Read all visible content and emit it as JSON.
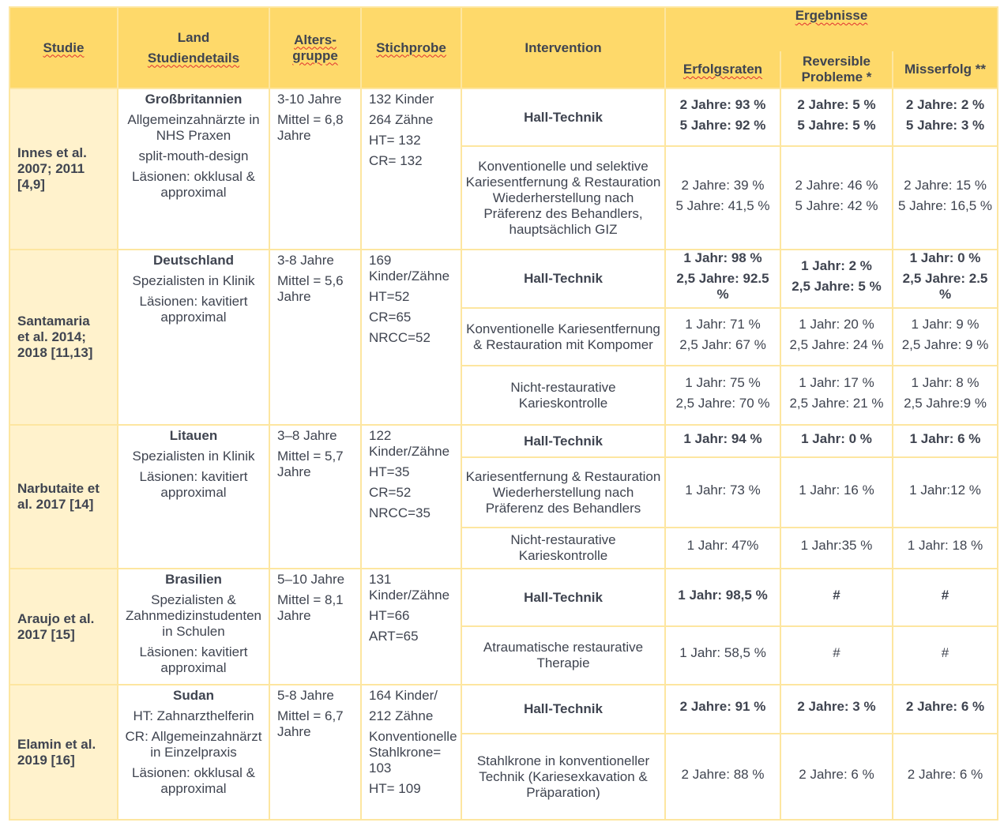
{
  "header": {
    "study": "Studie",
    "country": [
      "Land",
      "Studiendetails"
    ],
    "age": [
      "Alters-",
      "gruppe"
    ],
    "sample": "Stichprobe",
    "intervention": "Intervention",
    "results": "Ergebnisse",
    "success": "Erfolgsraten",
    "reversible": [
      "Reversible",
      "Probleme *"
    ],
    "failure": "Misserfolg **"
  },
  "colors": {
    "header_bg": "#fed96a",
    "study_bg": "#fff2cc",
    "border": "#fde6a0",
    "text": "#3f4450"
  },
  "studies": [
    {
      "study": [
        "Innes et al.",
        "2007; 2011",
        "[4,9]"
      ],
      "country": "Großbritannien",
      "details": [
        "Allgemeinzahnärzte in NHS Praxen",
        "split-mouth-design",
        "Läsionen: okklusal & approximal"
      ],
      "age": [
        "3-10 Jahre",
        "Mittel = 6,8 Jahre"
      ],
      "sample": [
        "132 Kinder",
        "264 Zähne",
        "HT= 132",
        "CR= 132"
      ],
      "interventions": [
        {
          "name": "Hall-Technik",
          "bold": true,
          "success": [
            "2 Jahre: 93 %",
            "5 Jahre: 92 %"
          ],
          "reversible": [
            "2 Jahre: 5 %",
            "5 Jahre: 5 %"
          ],
          "failure": [
            "2 Jahre: 2 %",
            "5 Jahre: 3 %"
          ]
        },
        {
          "name": "Konventionelle und selektive Kariesentfernung & Restauration Wiederherstellung nach Präferenz des Behandlers, hauptsächlich GIZ",
          "bold": false,
          "success": [
            "2 Jahre: 39 %",
            "5 Jahre: 41,5 %"
          ],
          "reversible": [
            "2 Jahre: 46 %",
            "5 Jahre: 42 %"
          ],
          "failure": [
            "2 Jahre: 15 %",
            "5 Jahre: 16,5 %"
          ]
        }
      ]
    },
    {
      "study": [
        "Santamaria",
        "et al. 2014;",
        "2018 [11,13]"
      ],
      "country": "Deutschland",
      "details": [
        "Spezialisten in Klinik",
        "Läsionen: kavitiert approximal"
      ],
      "age": [
        "3-8 Jahre",
        "Mittel = 5,6 Jahre"
      ],
      "sample": [
        "169 Kinder/Zähne",
        "HT=52",
        "CR=65",
        "NRCC=52"
      ],
      "interventions": [
        {
          "name": "Hall-Technik",
          "bold": true,
          "success": [
            "1 Jahr: 98 %",
            "2,5 Jahre: 92.5 %"
          ],
          "reversible": [
            "1 Jahr: 2 %",
            "2,5 Jahre: 5 %"
          ],
          "failure": [
            "1 Jahr: 0 %",
            "2,5 Jahre: 2.5 %"
          ]
        },
        {
          "name": "Konventionelle Kariesentfernung & Restauration mit Kompomer",
          "bold": false,
          "success": [
            "1 Jahr: 71 %",
            "2,5 Jahr: 67 %"
          ],
          "reversible": [
            "1 Jahr: 20 %",
            "2,5 Jahre: 24 %"
          ],
          "failure": [
            "1 Jahr: 9 %",
            "2,5 Jahre: 9 %"
          ]
        },
        {
          "name": "Nicht-restaurative Karieskontrolle",
          "bold": false,
          "success": [
            "1 Jahr: 75 %",
            "2,5 Jahre: 70 %"
          ],
          "reversible": [
            "1 Jahr: 17 %",
            "2,5 Jahre: 21 %"
          ],
          "failure": [
            "1 Jahr: 8 %",
            "2,5 Jahre:9 %"
          ]
        }
      ]
    },
    {
      "study": [
        "Narbutaite et",
        "al. 2017 [14]"
      ],
      "country": "Litauen",
      "details": [
        "Spezialisten in Klinik",
        "Läsionen: kavitiert approximal"
      ],
      "age": [
        "3–8 Jahre",
        "Mittel = 5,7 Jahre"
      ],
      "sample": [
        "122 Kinder/Zähne",
        "HT=35",
        "CR=52",
        "NRCC=35"
      ],
      "interventions": [
        {
          "name": "Hall-Technik",
          "bold": true,
          "success": [
            "1 Jahr: 94 %"
          ],
          "reversible": [
            "1 Jahr: 0 %"
          ],
          "failure": [
            "1 Jahr: 6 %"
          ]
        },
        {
          "name": "Kariesentfernung & Restauration Wiederherstellung nach Präferenz des Behandlers",
          "bold": false,
          "success": [
            "1 Jahr: 73 %"
          ],
          "reversible": [
            "1 Jahr: 16 %"
          ],
          "failure": [
            "1 Jahr:12 %"
          ]
        },
        {
          "name": "Nicht-restaurative Karieskontrolle",
          "bold": false,
          "success": [
            "1 Jahr: 47%"
          ],
          "reversible": [
            "1 Jahr:35 %"
          ],
          "failure": [
            "1 Jahr: 18 %"
          ]
        }
      ]
    },
    {
      "study": [
        "Araujo et al.",
        "2017 [15]"
      ],
      "country": "Brasilien",
      "details": [
        "Spezialisten & Zahnmedizinstudenten in Schulen",
        "Läsionen: kavitiert approximal"
      ],
      "age": [
        "5–10 Jahre",
        "Mittel = 8,1 Jahre"
      ],
      "sample": [
        "131 Kinder/Zähne",
        "HT=66",
        "ART=65"
      ],
      "interventions": [
        {
          "name": "Hall-Technik",
          "bold": true,
          "success": [
            "1 Jahr: 98,5 %"
          ],
          "reversible": [
            "#"
          ],
          "failure": [
            "#"
          ]
        },
        {
          "name": "Atraumatische restaurative Therapie",
          "bold": false,
          "success": [
            "1 Jahr: 58,5 %"
          ],
          "reversible": [
            "#"
          ],
          "failure": [
            "#"
          ]
        }
      ]
    },
    {
      "study": [
        "Elamin et al.",
        "2019 [16]"
      ],
      "country": "Sudan",
      "details": [
        "HT: Zahnarzthelferin",
        "CR: Allgemeinzahnärzt in Einzelpraxis",
        "Läsionen: okklusal & approximal"
      ],
      "age": [
        "5-8 Jahre",
        "Mittel = 6,7 Jahre"
      ],
      "sample": [
        "164 Kinder/",
        "212 Zähne",
        "Konventionelle Stahlkrone= 103",
        "HT= 109"
      ],
      "interventions": [
        {
          "name": "Hall-Technik",
          "bold": true,
          "success": [
            "2 Jahre: 91 %"
          ],
          "reversible": [
            "2 Jahre: 3 %"
          ],
          "failure": [
            "2 Jahre: 6 %"
          ]
        },
        {
          "name": "Stahlkrone in konventioneller Technik (Kariesexkavation & Präparation)",
          "bold": false,
          "success": [
            "2 Jahre: 88 %"
          ],
          "reversible": [
            "2 Jahre: 6 %"
          ],
          "failure": [
            "2 Jahre: 6 %"
          ]
        }
      ]
    }
  ]
}
